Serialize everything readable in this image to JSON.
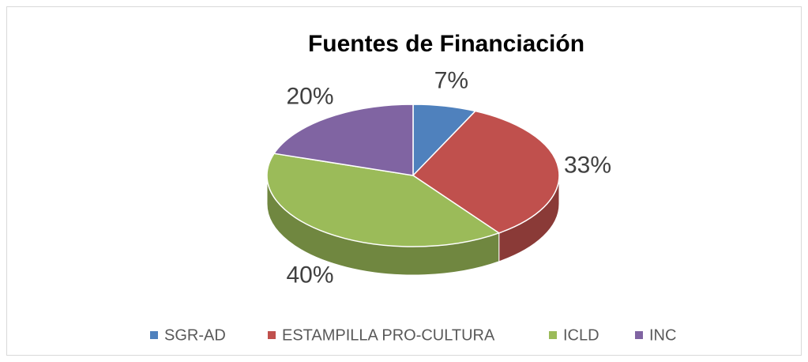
{
  "chart_data": {
    "type": "pie",
    "title": "Fuentes de Financiación",
    "categories": [
      "SGR-AD",
      "ESTAMPILLA PRO-CULTURA",
      "ICLD",
      "INC"
    ],
    "values": [
      7,
      33,
      40,
      20
    ],
    "value_labels": [
      "7%",
      "33%",
      "40%",
      "20%"
    ],
    "colors": [
      "#4f81bd",
      "#c0504d",
      "#9bbb59",
      "#8064a2"
    ],
    "legend": "bottom",
    "three_d": true
  }
}
